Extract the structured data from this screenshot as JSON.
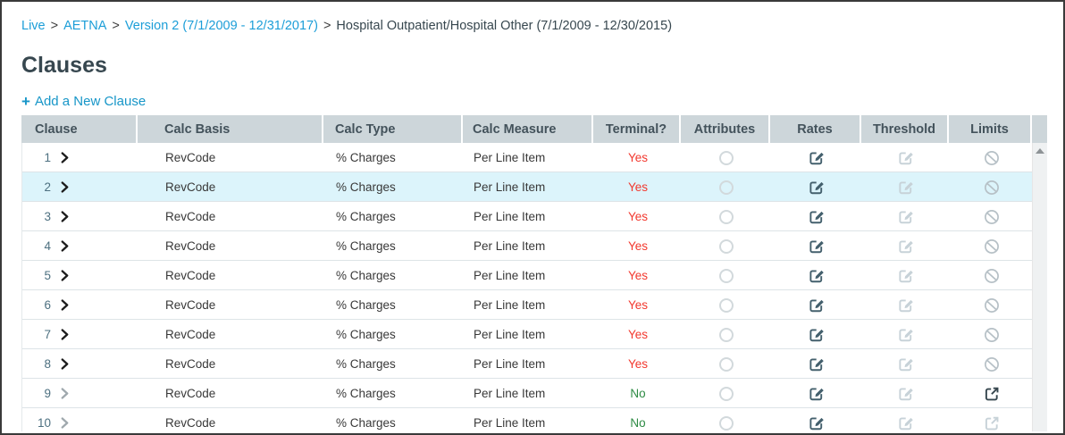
{
  "breadcrumb": {
    "separator": ">",
    "items": [
      {
        "label": "Live",
        "type": "link"
      },
      {
        "label": "AETNA",
        "type": "link"
      },
      {
        "label": "Version 2 (7/1/2009 - 12/31/2017)",
        "type": "link"
      },
      {
        "label": "Hospital Outpatient/Hospital Other (7/1/2009 - 12/30/2015)",
        "type": "current"
      }
    ]
  },
  "page": {
    "title": "Clauses",
    "add_icon": "+",
    "add_label": "Add a New Clause"
  },
  "colors": {
    "link_accent": "#1c9ed8",
    "heading": "#37474f",
    "header_bg": "#cdd6da",
    "header_text": "#43525b",
    "highlight_row_bg": "#dcf4fb",
    "terminal_yes": "#f2382e",
    "terminal_no": "#2e8b44",
    "icon_dark": "#44606d",
    "icon_muted": "#c7d2d8"
  },
  "icons": {
    "plus-icon": "+",
    "chevron-right-icon": "❯",
    "radio-icon": "circle-outline",
    "edit-icon": "pencil-on-square",
    "blocked-icon": "circle-with-slash",
    "external-link-icon": "arrow-out-of-square",
    "scroll-up-icon": "▲"
  },
  "table": {
    "columns": [
      "Clause",
      "Calc Basis",
      "Calc Type",
      "Calc Measure",
      "Terminal?",
      "Attributes",
      "Rates",
      "Threshold",
      "Limits"
    ],
    "rows": [
      {
        "num": "1",
        "chevron": "dark",
        "calc_basis": "RevCode",
        "calc_type": "% Charges",
        "calc_measure": "Per Line Item",
        "terminal": "Yes",
        "attributes": "radio-unselected",
        "rates": "edit-dark",
        "threshold": "edit-muted",
        "limits": "blocked",
        "highlighted": false
      },
      {
        "num": "2",
        "chevron": "dark",
        "calc_basis": "RevCode",
        "calc_type": "% Charges",
        "calc_measure": "Per Line Item",
        "terminal": "Yes",
        "attributes": "radio-unselected",
        "rates": "edit-dark",
        "threshold": "edit-muted",
        "limits": "blocked",
        "highlighted": true
      },
      {
        "num": "3",
        "chevron": "dark",
        "calc_basis": "RevCode",
        "calc_type": "% Charges",
        "calc_measure": "Per Line Item",
        "terminal": "Yes",
        "attributes": "radio-unselected",
        "rates": "edit-dark",
        "threshold": "edit-muted",
        "limits": "blocked",
        "highlighted": false
      },
      {
        "num": "4",
        "chevron": "dark",
        "calc_basis": "RevCode",
        "calc_type": "% Charges",
        "calc_measure": "Per Line Item",
        "terminal": "Yes",
        "attributes": "radio-unselected",
        "rates": "edit-dark",
        "threshold": "edit-muted",
        "limits": "blocked",
        "highlighted": false
      },
      {
        "num": "5",
        "chevron": "dark",
        "calc_basis": "RevCode",
        "calc_type": "% Charges",
        "calc_measure": "Per Line Item",
        "terminal": "Yes",
        "attributes": "radio-unselected",
        "rates": "edit-dark",
        "threshold": "edit-muted",
        "limits": "blocked",
        "highlighted": false
      },
      {
        "num": "6",
        "chevron": "dark",
        "calc_basis": "RevCode",
        "calc_type": "% Charges",
        "calc_measure": "Per Line Item",
        "terminal": "Yes",
        "attributes": "radio-unselected",
        "rates": "edit-dark",
        "threshold": "edit-muted",
        "limits": "blocked",
        "highlighted": false
      },
      {
        "num": "7",
        "chevron": "dark",
        "calc_basis": "RevCode",
        "calc_type": "% Charges",
        "calc_measure": "Per Line Item",
        "terminal": "Yes",
        "attributes": "radio-unselected",
        "rates": "edit-dark",
        "threshold": "edit-muted",
        "limits": "blocked",
        "highlighted": false
      },
      {
        "num": "8",
        "chevron": "dark",
        "calc_basis": "RevCode",
        "calc_type": "% Charges",
        "calc_measure": "Per Line Item",
        "terminal": "Yes",
        "attributes": "radio-unselected",
        "rates": "edit-dark",
        "threshold": "edit-muted",
        "limits": "blocked",
        "highlighted": false
      },
      {
        "num": "9",
        "chevron": "muted",
        "calc_basis": "RevCode",
        "calc_type": "% Charges",
        "calc_measure": "Per Line Item",
        "terminal": "No",
        "attributes": "radio-unselected",
        "rates": "edit-dark",
        "threshold": "edit-muted",
        "limits": "external-dark",
        "highlighted": false
      },
      {
        "num": "10",
        "chevron": "muted",
        "calc_basis": "RevCode",
        "calc_type": "% Charges",
        "calc_measure": "Per Line Item",
        "terminal": "No",
        "attributes": "radio-unselected",
        "rates": "edit-dark",
        "threshold": "edit-muted",
        "limits": "external-muted",
        "highlighted": false
      }
    ]
  }
}
